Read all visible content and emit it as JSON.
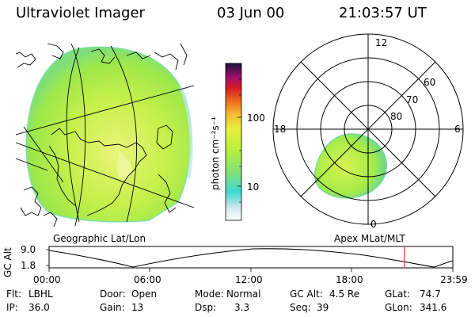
{
  "header": {
    "instrument": "Ultraviolet Imager",
    "date": "03 Jun 00",
    "time": "21:03:57 UT"
  },
  "colorbar": {
    "unit_label": "photon cm⁻²s⁻¹",
    "ticks": [
      "100",
      "10"
    ]
  },
  "polar_plot": {
    "mlt_labels": [
      "12",
      "18",
      "6",
      "0"
    ],
    "lat_labels": [
      "60",
      "70",
      "80"
    ]
  },
  "panel_labels": {
    "left": "Geographic Lat/Lon",
    "right": "Apex MLat/MLT"
  },
  "altitude_plot": {
    "ylabel": "GC Alt",
    "yticks": [
      "9.0",
      "1.8"
    ],
    "xticks": [
      "00:00",
      "06:00",
      "12:00",
      "18:00",
      "23:59"
    ],
    "current_time_fraction": 0.88
  },
  "info": {
    "row1": [
      {
        "label": "Flt:",
        "value": "LBHL"
      },
      {
        "label": "Door:",
        "value": "Open"
      },
      {
        "label": "Mode:",
        "value": "Normal"
      },
      {
        "label": "GC Alt:",
        "value": "4.5 Re"
      },
      {
        "label": "GLat:",
        "value": "74.7"
      }
    ],
    "row2": [
      {
        "label": "IP:",
        "value": "36.0"
      },
      {
        "label": "Gain:",
        "value": "13"
      },
      {
        "label": "Dsp:",
        "value": "3.3"
      },
      {
        "label": "Seq:",
        "value": "39"
      },
      {
        "label": "GLon:",
        "value": "341.6"
      }
    ]
  },
  "colors": {
    "auroral_fill": "#b8f03a",
    "auroral_core": "#e6f572",
    "auroral_edge": "#5fdc8c",
    "current_time_marker": "#e03030"
  }
}
